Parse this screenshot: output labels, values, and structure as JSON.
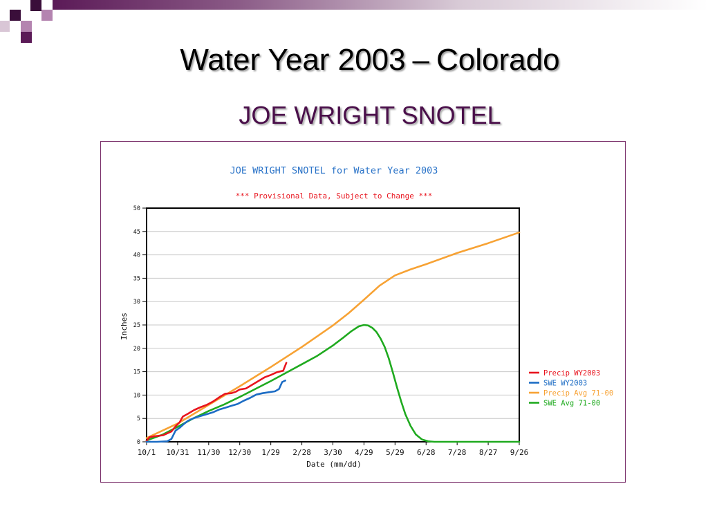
{
  "slide": {
    "title_main": "Water Year 2003",
    "title_sep": "–",
    "title_rest": "Colorado",
    "subtitle": "JOE WRIGHT SNOTEL"
  },
  "colors": {
    "accent_purple": "#5b1a57",
    "precip_wy2003": "#e8141e",
    "swe_wy2003": "#1c6cc4",
    "precip_avg": "#f7a234",
    "swe_avg": "#1faa1f"
  },
  "chart_data": {
    "type": "line",
    "title": "JOE WRIGHT SNOTEL for Water Year 2003",
    "subtitle": "*** Provisional Data, Subject to Change ***",
    "xlabel": "Date (mm/dd)",
    "ylabel": "Inches",
    "x_ticks": [
      "10/1",
      "10/31",
      "11/30",
      "12/30",
      "1/29",
      "2/28",
      "3/30",
      "4/29",
      "5/29",
      "6/28",
      "7/28",
      "8/27",
      "9/26"
    ],
    "x_tick_days": [
      0,
      30,
      60,
      90,
      120,
      150,
      180,
      210,
      240,
      270,
      300,
      330,
      360
    ],
    "y_ticks": [
      0,
      5,
      10,
      15,
      20,
      25,
      30,
      35,
      40,
      45,
      50
    ],
    "xlim": [
      0,
      360
    ],
    "ylim": [
      0,
      50
    ],
    "grid": true,
    "legend_position": "right",
    "series": [
      {
        "name": "Precip WY2003",
        "color": "#e8141e",
        "x": [
          0,
          3,
          8,
          16,
          24,
          28,
          32,
          35,
          40,
          46,
          52,
          58,
          64,
          70,
          76,
          82,
          86,
          90,
          96,
          102,
          108,
          114,
          120,
          126,
          132,
          135
        ],
        "y": [
          0.2,
          1.0,
          1.2,
          1.4,
          2.2,
          3.3,
          4.2,
          5.4,
          6.0,
          6.8,
          7.4,
          7.9,
          8.6,
          9.5,
          10.3,
          10.4,
          10.7,
          11.2,
          11.4,
          12.2,
          13.0,
          13.8,
          14.3,
          14.9,
          15.2,
          16.9
        ]
      },
      {
        "name": "SWE WY2003",
        "color": "#1c6cc4",
        "x": [
          0,
          10,
          20,
          24,
          28,
          32,
          36,
          40,
          46,
          52,
          58,
          64,
          70,
          76,
          82,
          88,
          94,
          100,
          106,
          112,
          118,
          124,
          128,
          131,
          134
        ],
        "y": [
          0,
          0,
          0.1,
          0.6,
          2.4,
          3.0,
          3.8,
          4.5,
          5.1,
          5.5,
          5.9,
          6.3,
          6.9,
          7.3,
          7.7,
          8.1,
          8.8,
          9.4,
          10.1,
          10.4,
          10.6,
          10.8,
          11.3,
          12.8,
          13.1
        ]
      },
      {
        "name": "Precip Avg 71-00",
        "color": "#f7a234",
        "x": [
          0,
          30,
          60,
          90,
          120,
          150,
          180,
          195,
          210,
          225,
          240,
          255,
          270,
          300,
          330,
          360
        ],
        "y": [
          0.8,
          3.9,
          7.9,
          11.9,
          16.0,
          20.3,
          24.9,
          27.5,
          30.4,
          33.4,
          35.6,
          36.9,
          38.0,
          40.4,
          42.5,
          44.8
        ]
      },
      {
        "name": "SWE Avg 71-00",
        "color": "#1faa1f",
        "x": [
          0,
          15,
          30,
          45,
          60,
          75,
          90,
          105,
          120,
          135,
          150,
          165,
          180,
          190,
          198,
          205,
          210,
          214,
          218,
          222,
          226,
          230,
          234,
          238,
          242,
          246,
          250,
          255,
          260,
          266,
          272,
          278,
          290,
          310,
          330,
          360
        ],
        "y": [
          0.3,
          1.5,
          3.2,
          5.0,
          6.6,
          8.0,
          9.6,
          11.3,
          13.0,
          14.8,
          16.6,
          18.4,
          20.6,
          22.3,
          23.7,
          24.7,
          25.0,
          24.9,
          24.4,
          23.5,
          22.1,
          20.3,
          17.8,
          14.8,
          11.6,
          8.6,
          5.9,
          3.4,
          1.6,
          0.5,
          0.1,
          0,
          0,
          0,
          0,
          0
        ]
      }
    ]
  }
}
